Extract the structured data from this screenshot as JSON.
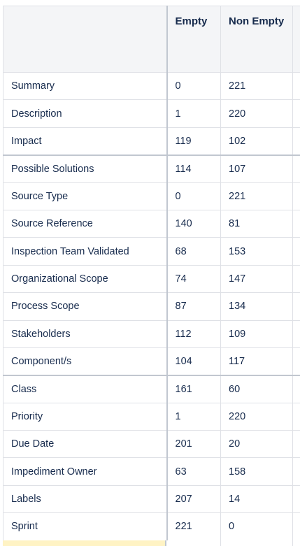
{
  "table": {
    "headers": {
      "field": "",
      "empty": "Empty",
      "non_empty": "Non Empty",
      "extra": ""
    },
    "rows": [
      {
        "field": "Summary",
        "empty": "0",
        "non_empty": "221"
      },
      {
        "field": "Description",
        "empty": "1",
        "non_empty": "220"
      },
      {
        "field": "Impact",
        "empty": "119",
        "non_empty": "102"
      },
      {
        "field": "Possible Solutions",
        "empty": "114",
        "non_empty": "107"
      },
      {
        "field": "Source Type",
        "empty": "0",
        "non_empty": "221"
      },
      {
        "field": "Source Reference",
        "empty": "140",
        "non_empty": "81"
      },
      {
        "field": "Inspection Team Validated",
        "empty": "68",
        "non_empty": "153"
      },
      {
        "field": "Organizational Scope",
        "empty": "74",
        "non_empty": "147"
      },
      {
        "field": "Process Scope",
        "empty": "87",
        "non_empty": "134"
      },
      {
        "field": "Stakeholders",
        "empty": "112",
        "non_empty": "109"
      },
      {
        "field": "Component/s",
        "empty": "104",
        "non_empty": "117"
      },
      {
        "field": "Class",
        "empty": "161",
        "non_empty": "60"
      },
      {
        "field": "Priority",
        "empty": "1",
        "non_empty": "220"
      },
      {
        "field": "Due Date",
        "empty": "201",
        "non_empty": "20"
      },
      {
        "field": "Impediment Owner",
        "empty": "63",
        "non_empty": "158"
      },
      {
        "field": "Labels",
        "empty": "207",
        "non_empty": "14"
      },
      {
        "field": "Sprint",
        "empty": "221",
        "non_empty": "0"
      }
    ]
  },
  "colors": {
    "header_bg": "#f4f5f7",
    "text": "#172b4d",
    "border": "#dfe1e6",
    "highlight_row": "#fff3c4"
  }
}
